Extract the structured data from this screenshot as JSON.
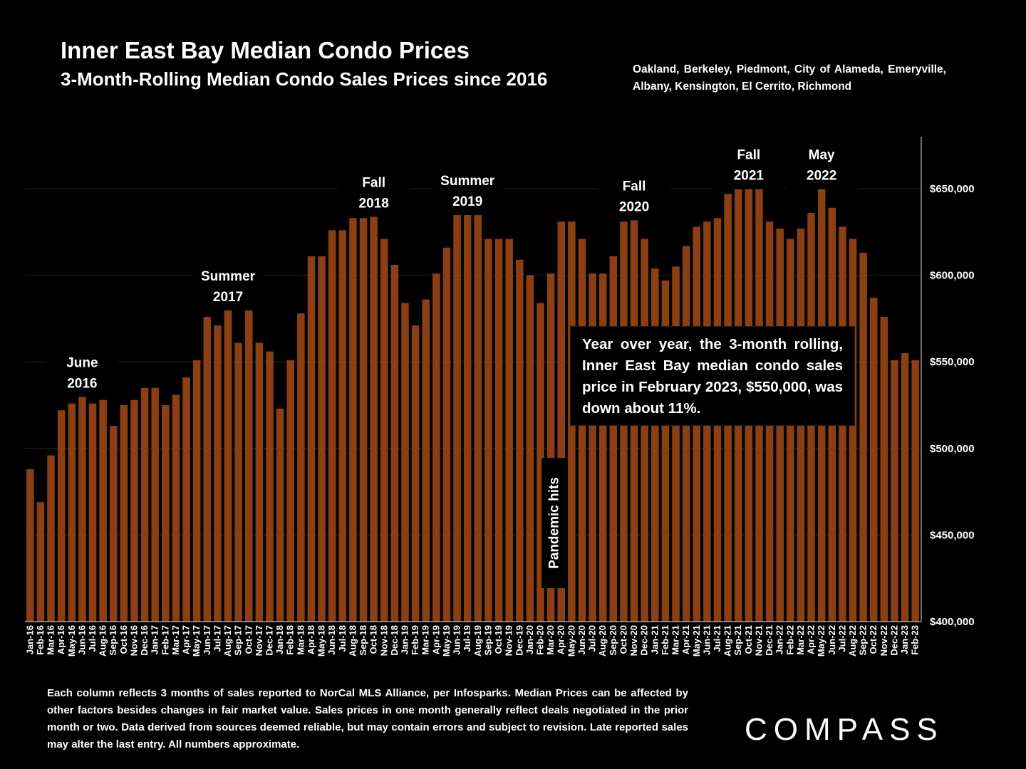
{
  "header": {
    "title": "Inner East Bay Median Condo Prices",
    "subtitle": "3-Month-Rolling Median Condo Sales Prices since 2016",
    "cities": "Oakland, Berkeley, Piedmont, City of Alameda, Emeryville, Albany, Kensington, El Cerrito, Richmond"
  },
  "note_box": {
    "text": "Year over year, the 3-month rolling, Inner East Bay median condo sales price in February 2023, $550,000, was down about 11%."
  },
  "footnote": "Each column reflects 3 months of sales reported to NorCal MLS Alliance, per Infosparks. Median Prices can be affected by other factors besides changes in fair market value. Sales prices in one month generally reflect deals negotiated in the prior month or two. Data derived from sources deemed reliable, but may contain errors and subject to revision. Late reported sales may alter the last entry. All numbers approximate.",
  "logo": "COMPASS",
  "colors": {
    "bar": "#8B3F12",
    "background": "#000000",
    "text": "#FFFFFF",
    "grid": "#262626"
  },
  "chart_data": {
    "type": "bar",
    "categories": [
      "Jan-16",
      "Feb-16",
      "Mar-16",
      "Apr-16",
      "May-16",
      "Jun-16",
      "Jul-16",
      "Aug-16",
      "Sep-16",
      "Oct-16",
      "Nov-16",
      "Dec-16",
      "Jan-17",
      "Feb-17",
      "Mar-17",
      "Apr-17",
      "May-17",
      "Jun-17",
      "Jul-17",
      "Aug-17",
      "Sep-17",
      "Oct-17",
      "Nov-17",
      "Dec-17",
      "Jan-18",
      "Feb-18",
      "Mar-18",
      "Apr-18",
      "May-18",
      "Jun-18",
      "Jul-18",
      "Aug-18",
      "Sep-18",
      "Oct-18",
      "Nov-18",
      "Dec-18",
      "Jan-19",
      "Feb-19",
      "Mar-19",
      "Apr-19",
      "May-19",
      "Jun-19",
      "Jul-19",
      "Aug-19",
      "Sep-19",
      "Oct-19",
      "Nov-19",
      "Dec-19",
      "Jan-20",
      "Feb-20",
      "Mar-20",
      "Apr-20",
      "May-20",
      "Jun-20",
      "Jul-20",
      "Aug-20",
      "Sep-20",
      "Oct-20",
      "Nov-20",
      "Dec-20",
      "Jan-21",
      "Feb-21",
      "Mar-21",
      "Apr-21",
      "May-21",
      "Jun-21",
      "Jul-21",
      "Aug-21",
      "Sep-21",
      "Oct-21",
      "Nov-21",
      "Dec-21",
      "Jan-22",
      "Feb-22",
      "Mar-22",
      "Apr-22",
      "May-22",
      "Jun-22",
      "Jul-22",
      "Aug-22",
      "Sep-22",
      "Oct-22",
      "Nov-22",
      "Dec-22",
      "Jan-23",
      "Feb-23"
    ],
    "values": [
      488000,
      469000,
      496000,
      522000,
      526000,
      531000,
      526000,
      528000,
      513000,
      525000,
      528000,
      535000,
      535000,
      525000,
      531000,
      541000,
      551000,
      576000,
      571000,
      581000,
      561000,
      580000,
      561000,
      556000,
      523000,
      551000,
      578000,
      611000,
      611000,
      626000,
      626000,
      633000,
      633000,
      635000,
      621000,
      606000,
      584000,
      571000,
      586000,
      601000,
      616000,
      638000,
      636000,
      637000,
      621000,
      621000,
      621000,
      609000,
      600000,
      584000,
      601000,
      631000,
      631000,
      621000,
      601000,
      601000,
      611000,
      631000,
      633000,
      621000,
      604000,
      597000,
      605000,
      617000,
      628000,
      631000,
      633000,
      647000,
      651000,
      651000,
      650000,
      631000,
      627000,
      621000,
      627000,
      636000,
      651000,
      639000,
      628000,
      621000,
      613000,
      587000,
      576000,
      551000,
      555000,
      551000
    ],
    "ylim": [
      400000,
      680000
    ],
    "yticks": [
      400000,
      450000,
      500000,
      550000,
      600000,
      650000
    ],
    "ytick_labels": [
      "$400,000",
      "$450,000",
      "$500,000",
      "$550,000",
      "$600,000",
      "$650,000"
    ],
    "grid": true,
    "annotations": [
      {
        "category": "Jun-16",
        "lines": [
          "June",
          "2016"
        ]
      },
      {
        "category": "Aug-17",
        "lines": [
          "Summer",
          "2017"
        ]
      },
      {
        "category": "Oct-18",
        "lines": [
          "Fall",
          "2018"
        ]
      },
      {
        "category": "Jul-19",
        "lines": [
          "Summer",
          "2019"
        ]
      },
      {
        "category": "Nov-20",
        "lines": [
          "Fall",
          "2020"
        ]
      },
      {
        "category": "Oct-21",
        "lines": [
          "Fall",
          "2021"
        ]
      },
      {
        "category": "May-22",
        "lines": [
          "May",
          "2022"
        ]
      }
    ],
    "pandemic_label": {
      "category": "Mar-20",
      "text": "Pandemic hits"
    }
  }
}
